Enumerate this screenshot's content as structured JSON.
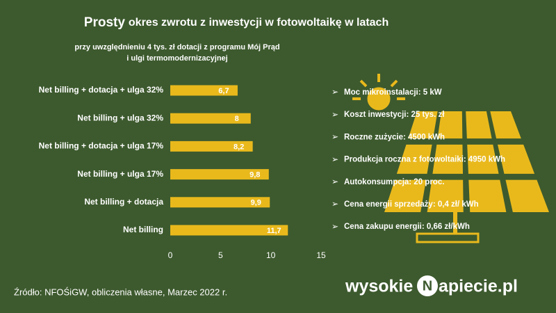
{
  "chart_data": {
    "type": "bar",
    "orientation": "horizontal",
    "title_lead": "Prosty",
    "title": "okres zwrotu z inwestycji w fotowoltaikę w latach",
    "subtitle": [
      "przy uwzględnieniu 4 tys. zł dotacji z programu Mój Prąd",
      "i ulgi termomodernizacyjnej"
    ],
    "categories": [
      "Net billing + dotacja + ulga 32%",
      "Net billing + ulga 32%",
      "Net billing + dotacja + ulga 17%",
      "Net billing + ulga 17%",
      "Net billing + dotacja",
      "Net billing"
    ],
    "values": [
      6.7,
      8,
      8.2,
      9.8,
      9.9,
      11.7
    ],
    "value_labels": [
      "6,7",
      "8",
      "8,2",
      "9,8",
      "9,9",
      "11,7"
    ],
    "color": "#e9b91c",
    "xlim": [
      0,
      15
    ],
    "xticks": [
      0,
      5,
      10,
      15
    ],
    "grid": false
  },
  "parameters": [
    "Moc mikroinstalacji: 5 kW",
    "Koszt inwestycji: 25 tys. zł",
    "Roczne zużycie: 4500 kWh",
    "Produkcja roczna z fotowoltaiki: 4950 kWh",
    "Autokonsumpcja: 20 proc.",
    "Cena energii sprzedaży: 0,4 zł/ kWh",
    "Cena zakupu energii:  0,66 zł/kWh"
  ],
  "source": "Źródło: NFOŚiGW, obliczenia własne, Marzec 2022 r.",
  "logo": [
    "wysokie",
    "N",
    "apiecie.pl"
  ]
}
